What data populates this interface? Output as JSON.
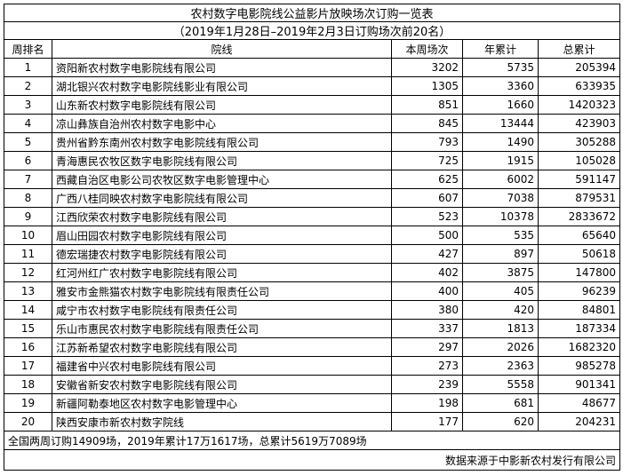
{
  "title": "农村数字电影院线公益影片放映场次订购一览表",
  "subtitle": "（2019年1月28日–2019年2月3日订购场次前20名）",
  "table": {
    "headers": [
      "周排名",
      "院线",
      "本周场次",
      "年累计",
      "总累计"
    ],
    "rows": [
      [
        1,
        "资阳新农村数字电影院线有限公司",
        3202,
        5735,
        205394
      ],
      [
        2,
        "湖北银兴农村数字电影院线影业有限公司",
        1305,
        3360,
        633935
      ],
      [
        3,
        "山东新农村数字电影院线有限公司",
        851,
        1660,
        1420323
      ],
      [
        4,
        "凉山彝族自治州农村数字电影中心",
        845,
        13444,
        423903
      ],
      [
        5,
        "贵州省黔东南州农村数字电影院线有限公司",
        793,
        1490,
        305288
      ],
      [
        6,
        "青海惠民农牧区数字电影院线有限公司",
        725,
        1915,
        105028
      ],
      [
        7,
        "西藏自治区电影公司农牧区数字电影管理中心",
        625,
        6002,
        591147
      ],
      [
        8,
        "广西八桂同映农村数字电影院线有限公司",
        607,
        7038,
        879531
      ],
      [
        9,
        "江西欣荣农村数字电影院线有限公司",
        523,
        10378,
        2833672
      ],
      [
        10,
        "眉山田园农村数字电影院线有限公司",
        500,
        535,
        65640
      ],
      [
        11,
        "德宏瑞捷农村数字电影院线有限公司",
        427,
        897,
        50618
      ],
      [
        12,
        "红河州红广农村数字电影院线有限公司",
        402,
        3875,
        147800
      ],
      [
        13,
        "雅安市金熊猫农村数字电影院线有限责任公司",
        400,
        405,
        96239
      ],
      [
        14,
        "咸宁市农村数字电影院线有限责任公司",
        380,
        420,
        84801
      ],
      [
        15,
        "乐山市惠民农村数字电影院线有限责任公司",
        337,
        1813,
        187334
      ],
      [
        16,
        "江苏新希望农村数字电影院线有限公司",
        297,
        2026,
        1682320
      ],
      [
        17,
        "福建省中兴农村电影院线有限公司",
        273,
        2363,
        985278
      ],
      [
        18,
        "安徽省新安农村数字电影院线有限公司",
        239,
        5558,
        901341
      ],
      [
        19,
        "新疆阿勒泰地区农村数字电影管理中心",
        198,
        681,
        48677
      ],
      [
        20,
        "陕西安康市新农村数字院线",
        177,
        620,
        204231
      ]
    ]
  },
  "footnote": "全国两周订购14909场，2019年累计17万1617场，总累计5619万7089场",
  "source": "数据来源于中影新农村发行有限公司"
}
